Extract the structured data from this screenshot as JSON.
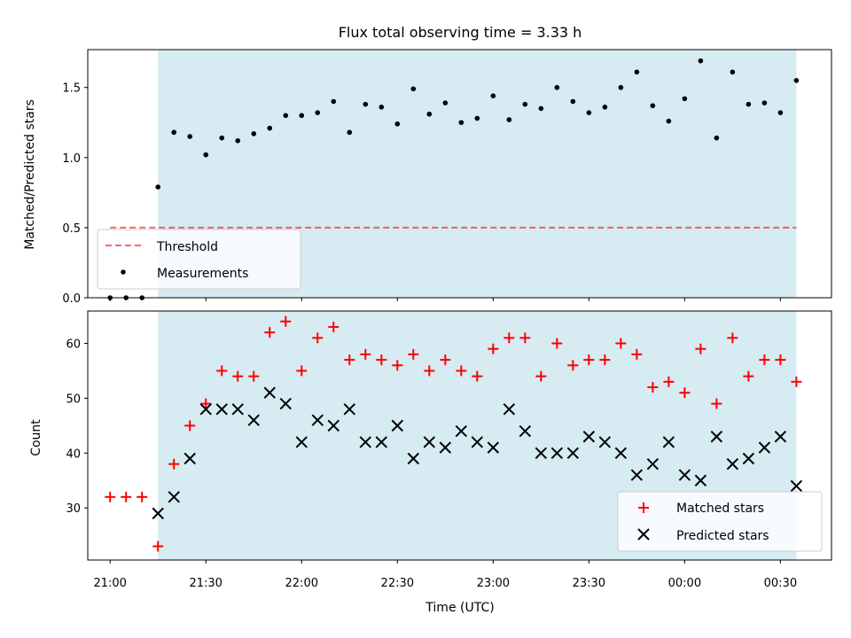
{
  "title": "Flux total observing time = 3.33 h",
  "colors": {
    "shade": "#add8e6",
    "threshold": "#ff0000",
    "measurement": "#000000",
    "matched": "#ff0000",
    "predicted": "#000000"
  },
  "chart_data": [
    {
      "type": "scatter",
      "ylabel": "Matched/Predicted stars",
      "ylim": [
        0,
        1.77
      ],
      "yticks": [
        "0.0",
        "0.5",
        "1.0",
        "1.5"
      ],
      "xlim": [
        "20:53",
        "00:46"
      ],
      "shaded_span": [
        "21:15",
        "00:35"
      ],
      "legend": {
        "placement": "lower-left",
        "entries": [
          "Threshold",
          "Measurements"
        ]
      },
      "threshold": {
        "name": "Threshold",
        "y": 0.5,
        "x_range": [
          "21:00",
          "00:35"
        ]
      },
      "series": [
        {
          "name": "Measurements",
          "x": [
            "21:00",
            "21:05",
            "21:10",
            "21:15",
            "21:20",
            "21:25",
            "21:30",
            "21:35",
            "21:40",
            "21:45",
            "21:50",
            "21:55",
            "22:00",
            "22:05",
            "22:10",
            "22:15",
            "22:20",
            "22:25",
            "22:30",
            "22:35",
            "22:40",
            "22:45",
            "22:50",
            "22:55",
            "23:00",
            "23:05",
            "23:10",
            "23:15",
            "23:20",
            "23:25",
            "23:30",
            "23:35",
            "23:40",
            "23:45",
            "23:50",
            "23:55",
            "00:00",
            "00:05",
            "00:10",
            "00:15",
            "00:20",
            "00:25",
            "00:30",
            "00:35"
          ],
          "y": [
            0.0,
            0.0,
            0.0,
            0.79,
            1.18,
            1.15,
            1.02,
            1.14,
            1.12,
            1.17,
            1.21,
            1.3,
            1.3,
            1.32,
            1.4,
            1.18,
            1.38,
            1.36,
            1.24,
            1.49,
            1.31,
            1.39,
            1.25,
            1.28,
            1.44,
            1.27,
            1.38,
            1.35,
            1.5,
            1.4,
            1.32,
            1.36,
            1.5,
            1.61,
            1.37,
            1.26,
            1.42,
            1.69,
            1.14,
            1.61,
            1.38,
            1.39,
            1.32,
            1.55
          ]
        }
      ]
    },
    {
      "type": "scatter",
      "xlabel": "Time (UTC)",
      "ylabel": "Count",
      "ylim": [
        20.5,
        65.9
      ],
      "yticks": [
        "30",
        "40",
        "50",
        "60"
      ],
      "xticks": [
        "21:00",
        "21:30",
        "22:00",
        "22:30",
        "23:00",
        "23:30",
        "00:00",
        "00:30"
      ],
      "xlim": [
        "20:53",
        "00:46"
      ],
      "shaded_span": [
        "21:15",
        "00:35"
      ],
      "legend": {
        "placement": "lower-right",
        "entries": [
          "Matched stars",
          "Predicted stars"
        ]
      },
      "series": [
        {
          "name": "Matched stars",
          "x": [
            "21:00",
            "21:05",
            "21:10",
            "21:15",
            "21:20",
            "21:25",
            "21:30",
            "21:35",
            "21:40",
            "21:45",
            "21:50",
            "21:55",
            "22:00",
            "22:05",
            "22:10",
            "22:15",
            "22:20",
            "22:25",
            "22:30",
            "22:35",
            "22:40",
            "22:45",
            "22:50",
            "22:55",
            "23:00",
            "23:05",
            "23:10",
            "23:15",
            "23:20",
            "23:25",
            "23:30",
            "23:35",
            "23:40",
            "23:45",
            "23:50",
            "23:55",
            "00:00",
            "00:05",
            "00:10",
            "00:15",
            "00:20",
            "00:25",
            "00:30",
            "00:35"
          ],
          "y": [
            32,
            32,
            32,
            23,
            38,
            45,
            49,
            55,
            54,
            54,
            62,
            64,
            55,
            61,
            63,
            57,
            58,
            57,
            56,
            58,
            55,
            57,
            55,
            54,
            59,
            61,
            61,
            54,
            60,
            56,
            57,
            57,
            60,
            58,
            52,
            53,
            51,
            59,
            49,
            61,
            54,
            57,
            57,
            53
          ]
        },
        {
          "name": "Predicted stars",
          "x": [
            "21:15",
            "21:20",
            "21:25",
            "21:30",
            "21:35",
            "21:40",
            "21:45",
            "21:50",
            "21:55",
            "22:00",
            "22:05",
            "22:10",
            "22:15",
            "22:20",
            "22:25",
            "22:30",
            "22:35",
            "22:40",
            "22:45",
            "22:50",
            "22:55",
            "23:00",
            "23:05",
            "23:10",
            "23:15",
            "23:20",
            "23:25",
            "23:30",
            "23:35",
            "23:40",
            "23:45",
            "23:50",
            "23:55",
            "00:00",
            "00:05",
            "00:10",
            "00:15",
            "00:20",
            "00:25",
            "00:30",
            "00:35"
          ],
          "y": [
            29,
            32,
            39,
            48,
            48,
            48,
            46,
            51,
            49,
            42,
            46,
            45,
            48,
            42,
            42,
            45,
            39,
            42,
            41,
            44,
            42,
            41,
            48,
            44,
            40,
            40,
            40,
            43,
            42,
            40,
            36,
            38,
            42,
            36,
            35,
            43,
            38,
            39,
            41,
            43,
            34
          ]
        }
      ]
    }
  ]
}
